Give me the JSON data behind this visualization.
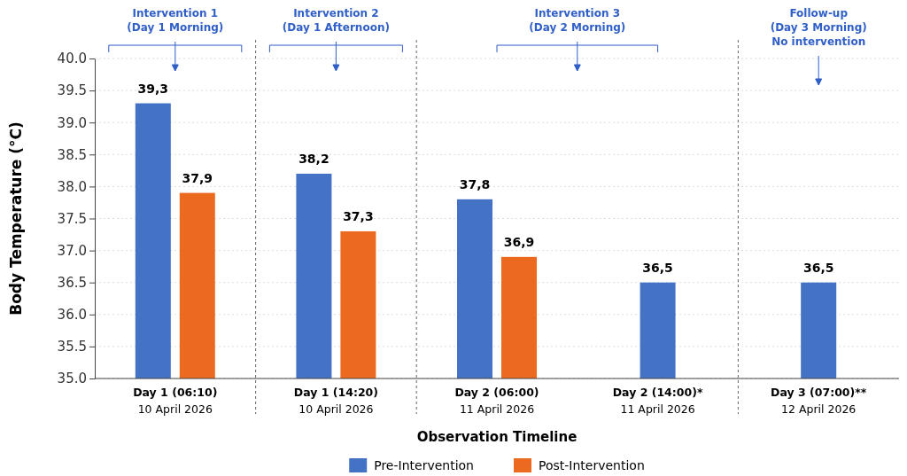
{
  "chart_data": {
    "type": "bar",
    "xlabel": "Observation Timeline",
    "ylabel": "Body Temperature (°C)",
    "categories": [
      "Day 1 (06:10)\n10 April 2026",
      "Day 1 (14:20)\n10 April 2026",
      "Day 2 (06:00)\n11 April 2026",
      "Day 2 (14:00)*\n11 April 2026",
      "Day 3 (07:00)**\n12 April 2026"
    ],
    "series": [
      {
        "name": "Pre-Intervention",
        "color": "#4472c4",
        "values": [
          39.3,
          38.2,
          37.8,
          36.5,
          36.5
        ],
        "value_labels": [
          "39,3",
          "38,2",
          "37,8",
          "36,5",
          "36,5"
        ]
      },
      {
        "name": "Post-Intervention",
        "color": "#eb6a1f",
        "values": [
          37.9,
          37.3,
          36.9,
          null,
          null
        ],
        "value_labels": [
          "37,9",
          "37,3",
          "36,9",
          null,
          null
        ]
      }
    ],
    "ylim": [
      35,
      40
    ],
    "yticks": [
      {
        "value": 35,
        "label": "35.0"
      },
      {
        "value": 35.5,
        "label": "35.5"
      },
      {
        "value": 36,
        "label": "36.0"
      },
      {
        "value": 36.5,
        "label": "36.5"
      },
      {
        "value": 37,
        "label": "37.0"
      },
      {
        "value": 37.5,
        "label": "37.5"
      },
      {
        "value": 38,
        "label": "38.0"
      },
      {
        "value": 38.5,
        "label": "38.5"
      },
      {
        "value": 39,
        "label": "39.0"
      },
      {
        "value": 39.5,
        "label": "39.5"
      },
      {
        "value": 40,
        "label": "40.0"
      }
    ],
    "grid": "y",
    "legend": "bottom",
    "annotations": [
      "Intervention 1\n(Day 1 Morning)",
      "Intervention 2\n(Day 1 Afternoon)",
      "Intervention 3\n(Day 2 Morning)",
      "Follow-up\n(Day 3 Morning)\nNo intervention"
    ]
  }
}
